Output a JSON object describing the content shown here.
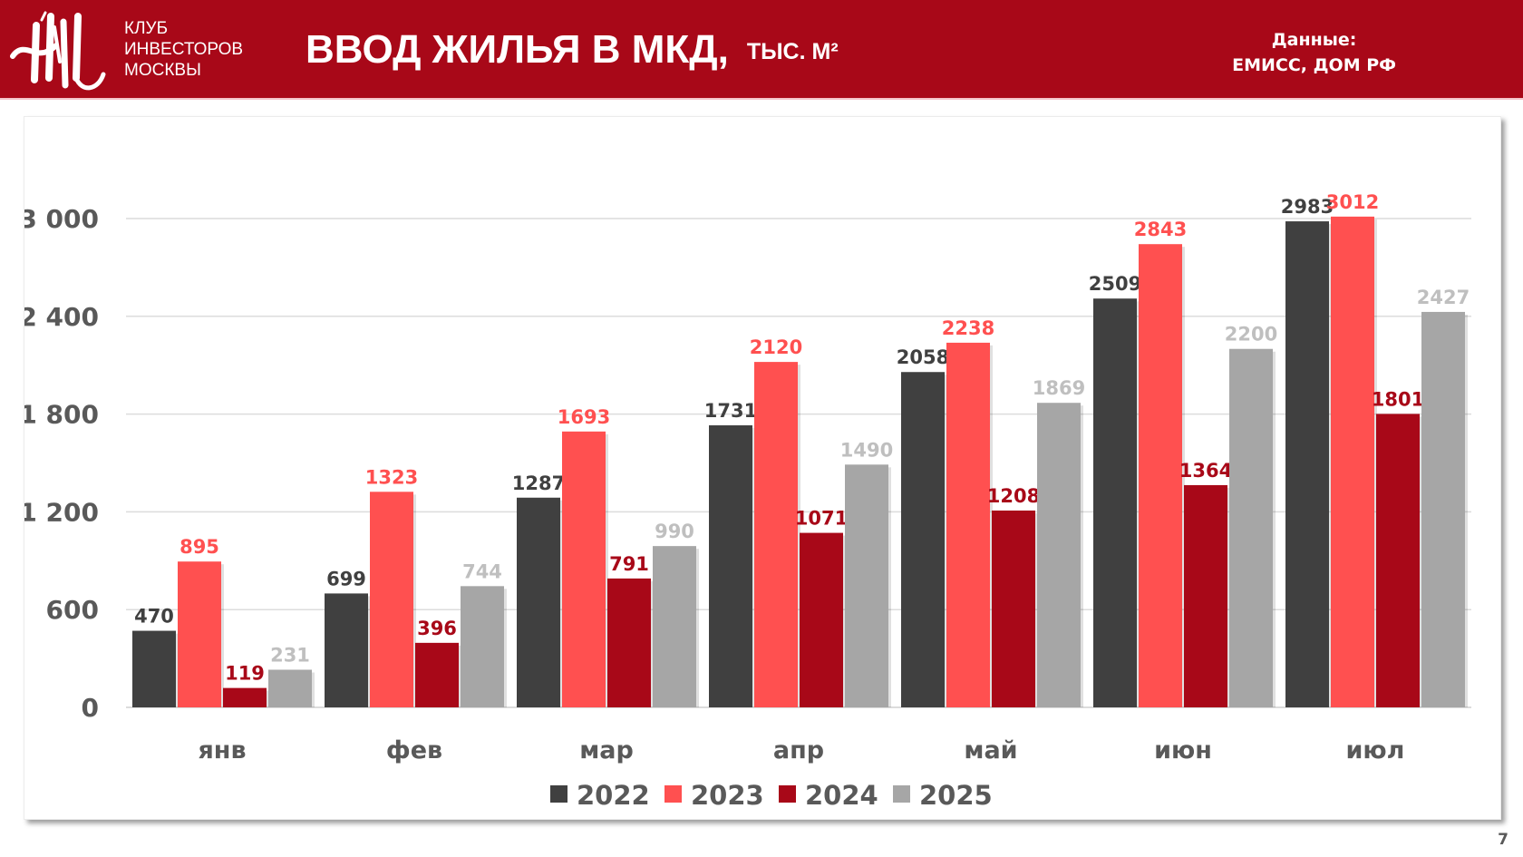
{
  "header": {
    "club_name_lines": [
      "КЛУБ",
      "ИНВЕСТОРОВ",
      "МОСКВЫ"
    ],
    "title": "ВВОД ЖИЛЬЯ В МКД,",
    "title_unit": "ТЫС. М²",
    "source_label": "Данные:",
    "source_value": "ЕМИСС, ДОМ РФ",
    "brand_color": "#A80818"
  },
  "page_number": "7",
  "chart_data": {
    "type": "bar",
    "title": "ВВОД ЖИЛЬЯ В МКД, ТЫС. М²",
    "xlabel": "",
    "ylabel": "",
    "categories": [
      "янв",
      "фев",
      "мар",
      "апр",
      "май",
      "июн",
      "июл"
    ],
    "series": [
      {
        "name": "2022",
        "color": "#404040",
        "label_color": "#404040",
        "values": [
          470,
          699,
          1287,
          1731,
          2058,
          2509,
          2983
        ]
      },
      {
        "name": "2023",
        "color": "#FF5050",
        "label_color": "#FF5050",
        "values": [
          895,
          1323,
          1693,
          2120,
          2238,
          2843,
          3012
        ]
      },
      {
        "name": "2024",
        "color": "#A80818",
        "label_color": "#A80818",
        "values": [
          119,
          396,
          791,
          1071,
          1208,
          1364,
          1801
        ]
      },
      {
        "name": "2025",
        "color": "#A6A6A6",
        "label_color": "#BFBFBF",
        "values": [
          231,
          744,
          990,
          1490,
          1869,
          2200,
          2427
        ]
      }
    ],
    "yticks": [
      0,
      600,
      1200,
      1800,
      2400,
      3000
    ],
    "ytick_labels": [
      "0",
      "600",
      "1 200",
      "1 800",
      "2 400",
      "3 000"
    ],
    "ylim": [
      0,
      3000
    ],
    "grid": true,
    "data_labels": true,
    "legend_position": "bottom-center"
  }
}
